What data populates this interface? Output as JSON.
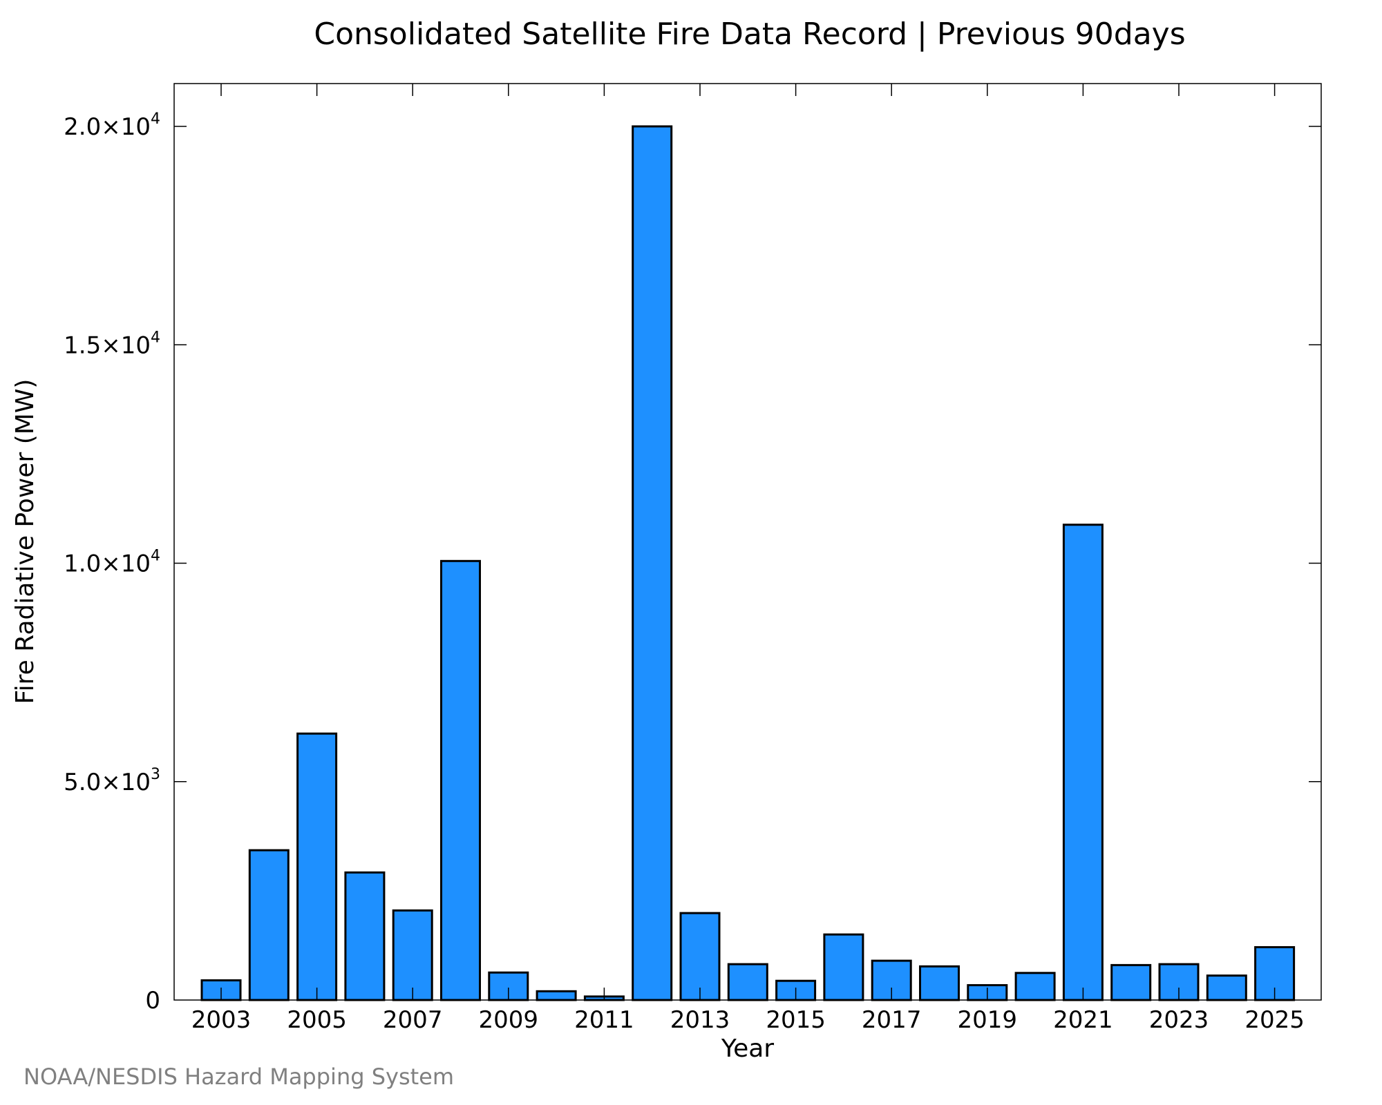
{
  "chart_data": {
    "type": "bar",
    "title": "Consolidated Satellite Fire Data Record | Previous 90days",
    "xlabel": "Year",
    "ylabel": "Fire Radiative Power (MW)",
    "categories": [
      "2003",
      "2004",
      "2005",
      "2006",
      "2007",
      "2008",
      "2009",
      "2010",
      "2011",
      "2012",
      "2013",
      "2014",
      "2015",
      "2016",
      "2017",
      "2018",
      "2019",
      "2020",
      "2021",
      "2022",
      "2023",
      "2024",
      "2025"
    ],
    "values": [
      450,
      3430,
      6100,
      2920,
      2050,
      10050,
      630,
      200,
      80,
      20000,
      1990,
      820,
      440,
      1500,
      900,
      770,
      340,
      620,
      10880,
      800,
      820,
      560,
      1210
    ],
    "x_tick_labels": [
      "2003",
      "2005",
      "2007",
      "2009",
      "2011",
      "2013",
      "2015",
      "2017",
      "2019",
      "2021",
      "2023",
      "2025"
    ],
    "y_ticks": [
      {
        "value": 0,
        "mantissa": "0",
        "exponent": ""
      },
      {
        "value": 5000,
        "mantissa": "5.0×10",
        "exponent": "3"
      },
      {
        "value": 10000,
        "mantissa": "1.0×10",
        "exponent": "4"
      },
      {
        "value": 15000,
        "mantissa": "1.5×10",
        "exponent": "4"
      },
      {
        "value": 20000,
        "mantissa": "2.0×10",
        "exponent": "4"
      }
    ],
    "ylim": [
      0,
      21000
    ],
    "grid": false,
    "legend": "none",
    "bar_color": "#1e90ff",
    "edge_color": "#000000"
  },
  "footer": {
    "credit": "NOAA/NESDIS Hazard Mapping System"
  }
}
